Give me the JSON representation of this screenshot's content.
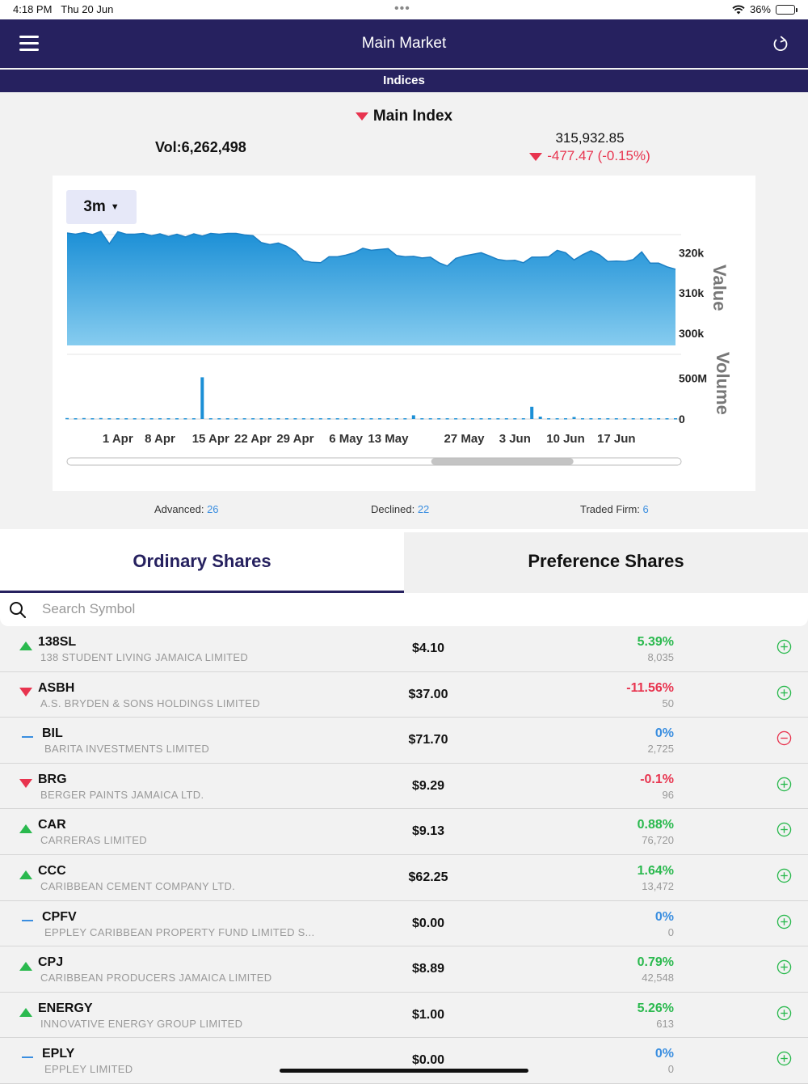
{
  "status": {
    "time": "4:18 PM",
    "date": "Thu 20 Jun",
    "battery": "36%",
    "battery_level": 0.36
  },
  "nav": {
    "title": "Main Market"
  },
  "subnav": {
    "title": "Indices"
  },
  "index": {
    "name": "Main Index",
    "volume": "Vol:6,262,498",
    "value": "315,932.85",
    "change": "-477.47 (-0.15%)",
    "direction": "down"
  },
  "chart_data": {
    "type": "area",
    "range_label": "3m",
    "x_tick_labels": [
      "1 Apr",
      "8 Apr",
      "15 Apr",
      "22 Apr",
      "29 Apr",
      "6 May",
      "13 May",
      "27 May",
      "3 Jun",
      "10 Jun",
      "17 Jun"
    ],
    "value_axis": {
      "title": "Value",
      "ticks": [
        "320k",
        "310k",
        "300k"
      ],
      "ylim": [
        297000,
        327500
      ]
    },
    "volume_axis": {
      "title": "Volume",
      "ticks": [
        "500M",
        "0"
      ],
      "ylim": [
        0,
        800000000
      ]
    },
    "value_series": [
      324900,
      324600,
      325000,
      324500,
      325300,
      322200,
      325200,
      324600,
      324600,
      324800,
      324200,
      324700,
      324000,
      324600,
      323900,
      324700,
      324100,
      324800,
      324600,
      324800,
      324800,
      324400,
      324200,
      322500,
      322000,
      322400,
      321600,
      320300,
      318000,
      317600,
      317500,
      319000,
      319000,
      319400,
      320000,
      321100,
      320600,
      320800,
      321000,
      319300,
      319000,
      319100,
      318700,
      318900,
      317500,
      316700,
      318600,
      319200,
      319600,
      320000,
      319200,
      318300,
      318000,
      318100,
      317500,
      318900,
      318900,
      319000,
      320600,
      320000,
      318200,
      319500,
      320500,
      319500,
      317800,
      317900,
      317800,
      318300,
      320200,
      317400,
      317400,
      316500,
      315900
    ],
    "volume_series": [
      12000000,
      10000000,
      12000000,
      10000000,
      12000000,
      10000000,
      10000000,
      10000000,
      10000000,
      10000000,
      10000000,
      10000000,
      10000000,
      10000000,
      10000000,
      10000000,
      510000000,
      10000000,
      10000000,
      10000000,
      10000000,
      10000000,
      10000000,
      10000000,
      10000000,
      10000000,
      10000000,
      10000000,
      10000000,
      10000000,
      10000000,
      10000000,
      10000000,
      10000000,
      10000000,
      10000000,
      10000000,
      10000000,
      10000000,
      10000000,
      10000000,
      45000000,
      10000000,
      10000000,
      10000000,
      10000000,
      10000000,
      10000000,
      10000000,
      10000000,
      10000000,
      10000000,
      10000000,
      10000000,
      10000000,
      150000000,
      30000000,
      10000000,
      10000000,
      10000000,
      25000000,
      10000000,
      10000000,
      10000000,
      10000000,
      10000000,
      10000000,
      10000000,
      10000000,
      10000000,
      10000000,
      10000000,
      10000000
    ],
    "scroll_position": 0.77,
    "colors": {
      "area_top": "#1b8fd6",
      "area_bottom": "#86ccef",
      "line": "#1b7fc4",
      "bar": "#1b8fd6"
    }
  },
  "stats": {
    "advanced_label": "Advanced:",
    "advanced": "26",
    "declined_label": "Declined:",
    "declined": "22",
    "traded_label": "Traded Firm:",
    "traded": "6"
  },
  "tabs": {
    "ordinary": "Ordinary Shares",
    "preference": "Preference Shares"
  },
  "search": {
    "placeholder": "Search Symbol"
  },
  "stocks": [
    {
      "symbol": "138SL",
      "name": "138 STUDENT LIVING JAMAICA LIMITED",
      "price": "$4.10",
      "change": "5.39%",
      "volume": "8,035",
      "direction": "up",
      "action": "add"
    },
    {
      "symbol": "ASBH",
      "name": "A.S. BRYDEN & SONS HOLDINGS LIMITED",
      "price": "$37.00",
      "change": "-11.56%",
      "volume": "50",
      "direction": "down",
      "action": "add"
    },
    {
      "symbol": "BIL",
      "name": "BARITA INVESTMENTS LIMITED",
      "price": "$71.70",
      "change": "0%",
      "volume": "2,725",
      "direction": "flat",
      "action": "remove"
    },
    {
      "symbol": "BRG",
      "name": "BERGER PAINTS JAMAICA LTD.",
      "price": "$9.29",
      "change": "-0.1%",
      "volume": "96",
      "direction": "down",
      "action": "add"
    },
    {
      "symbol": "CAR",
      "name": "CARRERAS LIMITED",
      "price": "$9.13",
      "change": "0.88%",
      "volume": "76,720",
      "direction": "up",
      "action": "add"
    },
    {
      "symbol": "CCC",
      "name": "CARIBBEAN CEMENT COMPANY LTD.",
      "price": "$62.25",
      "change": "1.64%",
      "volume": "13,472",
      "direction": "up",
      "action": "add"
    },
    {
      "symbol": "CPFV",
      "name": "EPPLEY CARIBBEAN PROPERTY FUND LIMITED S...",
      "price": "$0.00",
      "change": "0%",
      "volume": "0",
      "direction": "flat",
      "action": "add"
    },
    {
      "symbol": "CPJ",
      "name": "CARIBBEAN PRODUCERS JAMAICA LIMITED",
      "price": "$8.89",
      "change": "0.79%",
      "volume": "42,548",
      "direction": "up",
      "action": "add"
    },
    {
      "symbol": "ENERGY",
      "name": "INNOVATIVE ENERGY GROUP LIMITED",
      "price": "$1.00",
      "change": "5.26%",
      "volume": "613",
      "direction": "up",
      "action": "add"
    },
    {
      "symbol": "EPLY",
      "name": "EPPLEY LIMITED",
      "price": "$0.00",
      "change": "0%",
      "volume": "0",
      "direction": "flat",
      "action": "add"
    }
  ]
}
